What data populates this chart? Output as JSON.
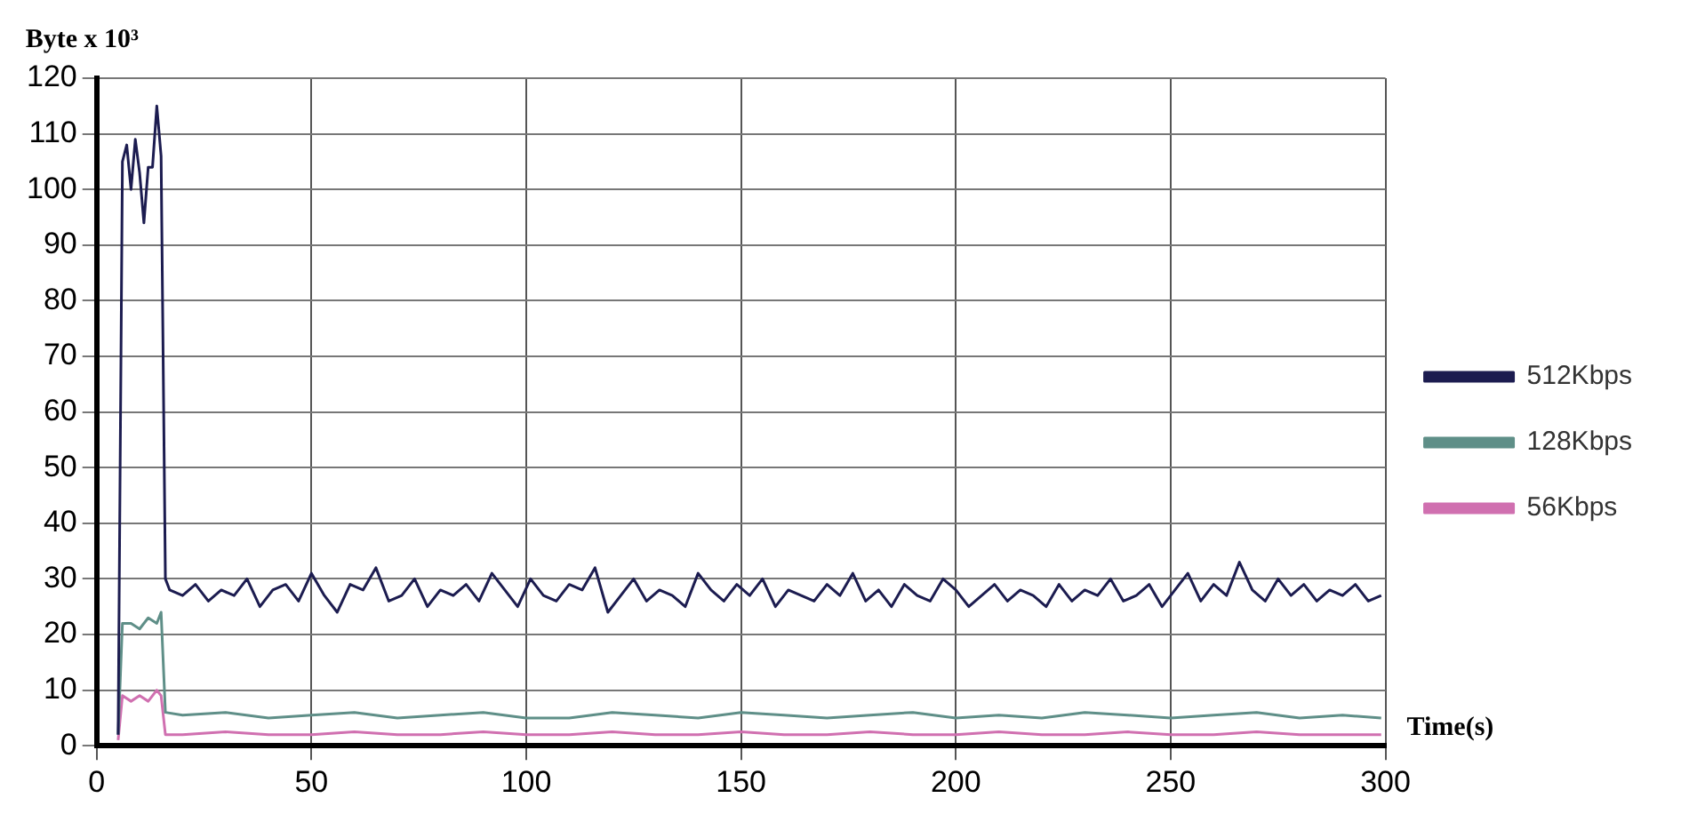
{
  "chart_data": {
    "type": "line",
    "ylabel": "Byte x 10³",
    "xlabel": "Time(s)",
    "xlim": [
      0,
      300
    ],
    "xticks": [
      0,
      50,
      100,
      150,
      200,
      250,
      300
    ],
    "ylim": [
      0,
      120
    ],
    "yticks": [
      0,
      10,
      20,
      30,
      40,
      50,
      60,
      70,
      80,
      90,
      100,
      110,
      120
    ],
    "grid": true,
    "legend": "right",
    "marker": "none",
    "line_style": "solid",
    "series": [
      {
        "name": "512Kbps",
        "color": "#1c1c50",
        "x": [
          5,
          6,
          7,
          8,
          9,
          10,
          11,
          12,
          13,
          14,
          15,
          16,
          17,
          20,
          23,
          26,
          29,
          32,
          35,
          38,
          41,
          44,
          47,
          50,
          53,
          56,
          59,
          62,
          65,
          68,
          71,
          74,
          77,
          80,
          83,
          86,
          89,
          92,
          95,
          98,
          101,
          104,
          107,
          110,
          113,
          116,
          119,
          122,
          125,
          128,
          131,
          134,
          137,
          140,
          143,
          146,
          149,
          152,
          155,
          158,
          161,
          164,
          167,
          170,
          173,
          176,
          179,
          182,
          185,
          188,
          191,
          194,
          197,
          200,
          203,
          206,
          209,
          212,
          215,
          218,
          221,
          224,
          227,
          230,
          233,
          236,
          239,
          242,
          245,
          248,
          251,
          254,
          257,
          260,
          263,
          266,
          269,
          272,
          275,
          278,
          281,
          284,
          287,
          290,
          293,
          296,
          299
        ],
        "values": [
          2,
          105,
          108,
          100,
          109,
          103,
          94,
          104,
          104,
          115,
          106,
          30,
          28,
          27,
          29,
          26,
          28,
          27,
          30,
          25,
          28,
          29,
          26,
          31,
          27,
          24,
          29,
          28,
          32,
          26,
          27,
          30,
          25,
          28,
          27,
          29,
          26,
          31,
          28,
          25,
          30,
          27,
          26,
          29,
          28,
          32,
          24,
          27,
          30,
          26,
          28,
          27,
          25,
          31,
          28,
          26,
          29,
          27,
          30,
          25,
          28,
          27,
          26,
          29,
          27,
          31,
          26,
          28,
          25,
          29,
          27,
          26,
          30,
          28,
          25,
          27,
          29,
          26,
          28,
          27,
          25,
          29,
          26,
          28,
          27,
          30,
          26,
          27,
          29,
          25,
          28,
          31,
          26,
          29,
          27,
          33,
          28,
          26,
          30,
          27,
          29,
          26,
          28,
          27,
          29,
          26,
          27
        ]
      },
      {
        "name": "128Kbps",
        "color": "#5f8f88",
        "x": [
          5,
          6,
          8,
          10,
          12,
          14,
          15,
          16,
          20,
          30,
          40,
          50,
          60,
          70,
          80,
          90,
          100,
          110,
          120,
          130,
          140,
          150,
          160,
          170,
          180,
          190,
          200,
          210,
          220,
          230,
          240,
          250,
          260,
          270,
          280,
          290,
          299
        ],
        "values": [
          2,
          22,
          22,
          21,
          23,
          22,
          24,
          6,
          5.5,
          6,
          5,
          5.5,
          6,
          5,
          5.5,
          6,
          5,
          5,
          6,
          5.5,
          5,
          6,
          5.5,
          5,
          5.5,
          6,
          5,
          5.5,
          5,
          6,
          5.5,
          5,
          5.5,
          6,
          5,
          5.5,
          5
        ]
      },
      {
        "name": "56Kbps",
        "color": "#d070b0",
        "x": [
          5,
          6,
          8,
          10,
          12,
          14,
          15,
          16,
          20,
          30,
          40,
          50,
          60,
          70,
          80,
          90,
          100,
          110,
          120,
          130,
          140,
          150,
          160,
          170,
          180,
          190,
          200,
          210,
          220,
          230,
          240,
          250,
          260,
          270,
          280,
          290,
          299
        ],
        "values": [
          1,
          9,
          8,
          9,
          8,
          10,
          9,
          2,
          2,
          2.5,
          2,
          2,
          2.5,
          2,
          2,
          2.5,
          2,
          2,
          2.5,
          2,
          2,
          2.5,
          2,
          2,
          2.5,
          2,
          2,
          2.5,
          2,
          2,
          2.5,
          2,
          2,
          2.5,
          2,
          2,
          2
        ]
      }
    ]
  }
}
